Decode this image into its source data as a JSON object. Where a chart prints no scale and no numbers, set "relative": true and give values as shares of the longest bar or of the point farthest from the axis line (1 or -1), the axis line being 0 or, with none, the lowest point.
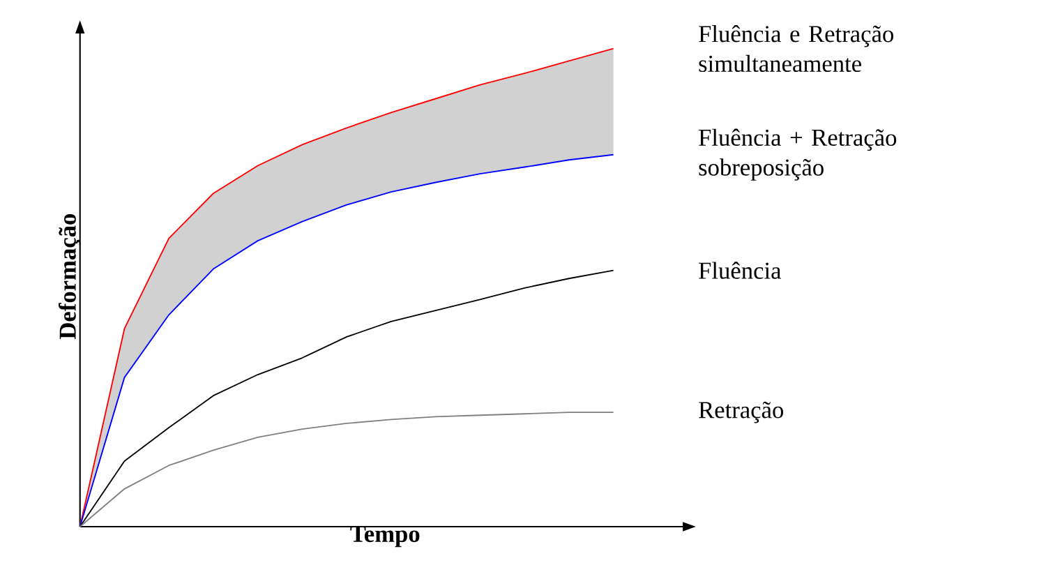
{
  "chart_data": {
    "type": "line",
    "relative": true,
    "xlabel": "Tempo",
    "ylabel": "Deformação",
    "marker": "none",
    "line_style": "solid",
    "categories": [
      null,
      null,
      null,
      null,
      null,
      null,
      null,
      null,
      null,
      null,
      null,
      null,
      null
    ],
    "series": [
      {
        "name": "Fluência e Retração simultaneamente",
        "color": "#ff0000",
        "values": [
          0,
          0.414,
          0.603,
          0.697,
          0.755,
          0.799,
          0.834,
          0.866,
          0.895,
          0.924,
          0.948,
          0.974,
          1
        ],
        "lower": [
          0,
          0.312,
          0.443,
          0.539,
          0.598,
          0.638,
          0.673,
          0.7,
          0.72,
          0.738,
          0.752,
          0.767,
          0.778
        ],
        "upper": [
          0,
          0.414,
          0.603,
          0.697,
          0.755,
          0.799,
          0.834,
          0.866,
          0.895,
          0.924,
          0.948,
          0.974,
          1
        ]
      },
      {
        "name": "Fluência + Retração sobreposição",
        "color": "#0000ff",
        "values": [
          0,
          0.312,
          0.443,
          0.539,
          0.598,
          0.638,
          0.673,
          0.7,
          0.72,
          0.738,
          0.752,
          0.767,
          0.778
        ]
      },
      {
        "name": "Fluência",
        "color": "#000000",
        "values": [
          0,
          0.137,
          0.207,
          0.274,
          0.318,
          0.353,
          0.397,
          0.429,
          0.452,
          0.475,
          0.499,
          0.519,
          0.536
        ]
      },
      {
        "name": "Retração",
        "color": "#808080",
        "values": [
          0,
          0.079,
          0.128,
          0.16,
          0.187,
          0.204,
          0.216,
          0.224,
          0.23,
          0.233,
          0.236,
          0.239,
          0.239
        ]
      }
    ]
  }
}
